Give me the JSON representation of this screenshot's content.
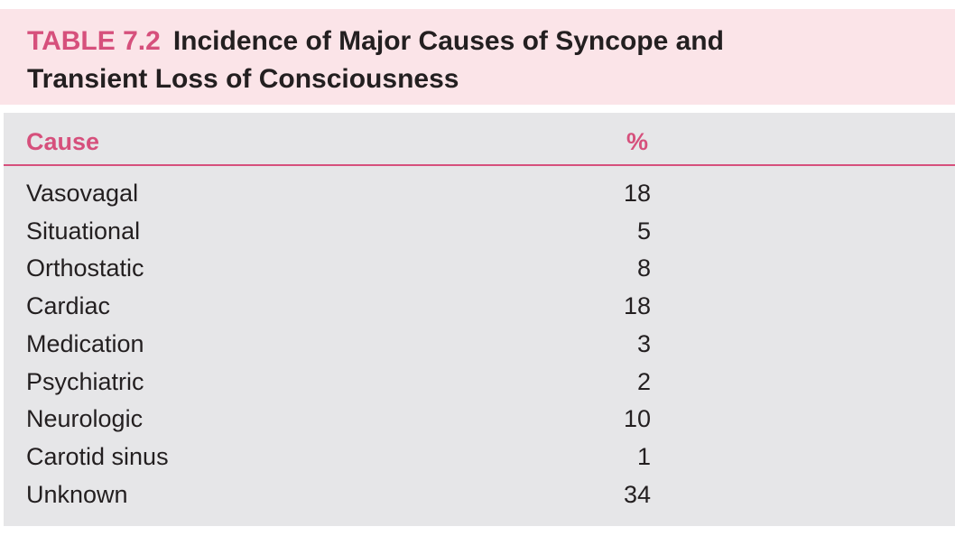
{
  "table": {
    "label": "TABLE 7.2",
    "title_lines": [
      "Incidence of Major Causes of Syncope and",
      "Transient Loss of Consciousness"
    ],
    "columns": [
      "Cause",
      "%"
    ],
    "rows": [
      [
        "Vasovagal",
        18
      ],
      [
        "Situational",
        5
      ],
      [
        "Orthostatic",
        8
      ],
      [
        "Cardiac",
        18
      ],
      [
        "Medication",
        3
      ],
      [
        "Psychiatric",
        2
      ],
      [
        "Neurologic",
        10
      ],
      [
        "Carotid sinus",
        1
      ],
      [
        "Unknown",
        34
      ]
    ]
  }
}
